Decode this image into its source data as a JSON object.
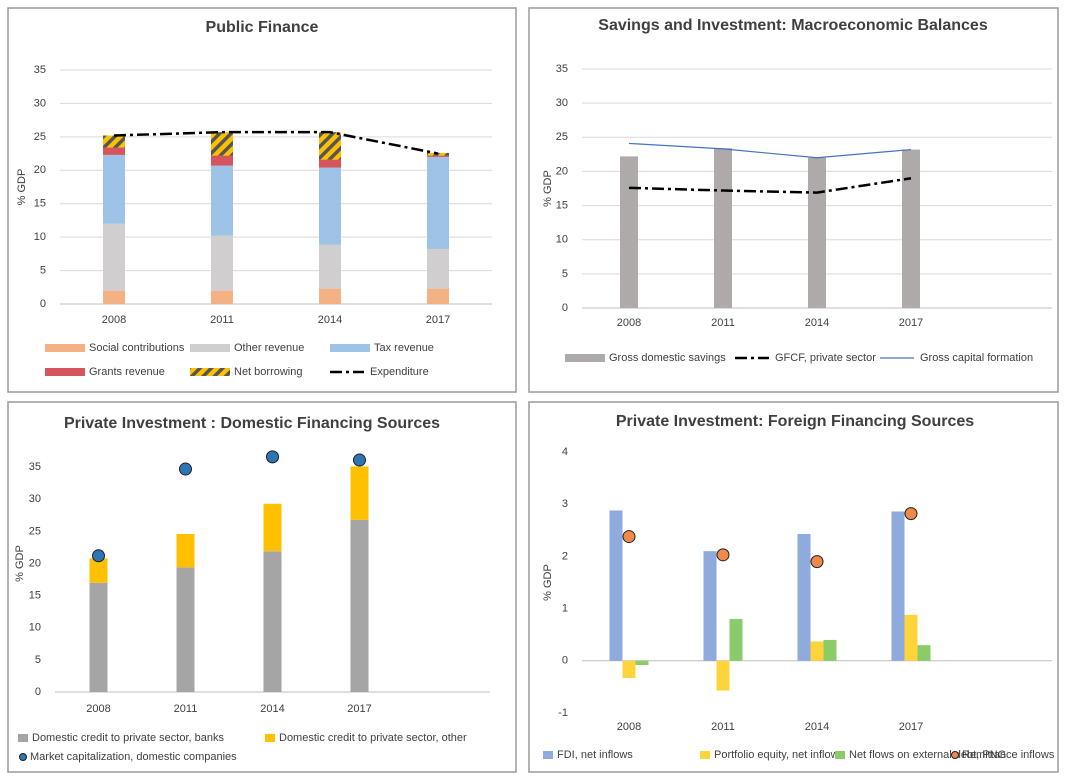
{
  "chart_data": [
    {
      "type": "bar",
      "title": "Public Finance",
      "y_label": "% GDP",
      "stacked": true,
      "grid": true,
      "legend": "bottom",
      "categories": [
        "2008",
        "2011",
        "2014",
        "2017"
      ],
      "ylim": [
        0,
        35
      ],
      "yticks": [
        0,
        5,
        10,
        15,
        20,
        25,
        30,
        35
      ],
      "series": [
        {
          "name": "Social contributions",
          "kind": "bar",
          "color": "#f4b183",
          "values": [
            2,
            2,
            2.3,
            2.3
          ]
        },
        {
          "name": "Other revenue",
          "kind": "bar",
          "color": "#d0cece",
          "values": [
            10,
            8.2,
            6.6,
            5.9
          ]
        },
        {
          "name": "Tax revenue",
          "kind": "bar",
          "color": "#9dc3e6",
          "values": [
            10.3,
            10.5,
            11.5,
            13.8
          ]
        },
        {
          "name": "Grants revenue",
          "kind": "bar",
          "color": "#d6545c",
          "values": [
            1.1,
            1.5,
            1.2,
            0.2
          ]
        },
        {
          "name": "Net borrowing",
          "kind": "bar",
          "color": "#ffc000",
          "pattern": "hatch",
          "values": [
            1.8,
            3.5,
            4.1,
            0.4
          ]
        },
        {
          "name": "Expenditure",
          "kind": "line",
          "color": "#000000",
          "dash": "dashdot",
          "values": [
            25.2,
            25.7,
            25.7,
            22.5
          ]
        }
      ]
    },
    {
      "type": "bar",
      "title": "Savings and Investment: Macroeconomic Balances",
      "y_label": "% GDP",
      "stacked": false,
      "grid": true,
      "legend": "bottom",
      "categories": [
        "2008",
        "2011",
        "2014",
        "2017"
      ],
      "ylim": [
        0,
        35
      ],
      "yticks": [
        0,
        5,
        10,
        15,
        20,
        25,
        30,
        35
      ],
      "series": [
        {
          "name": "Gross domestic savings",
          "kind": "bar",
          "color": "#aeaaaa",
          "values": [
            22.2,
            23.4,
            22.0,
            23.2
          ]
        },
        {
          "name": "GFCF, private sector",
          "kind": "line",
          "color": "#000000",
          "dash": "dashdot",
          "values": [
            17.6,
            17.2,
            16.9,
            19.0
          ]
        },
        {
          "name": "Gross capital formation",
          "kind": "line",
          "color": "#4472c4",
          "values": [
            24.1,
            23.3,
            22.0,
            23.2
          ]
        }
      ]
    },
    {
      "type": "bar",
      "title": "Private Investment : Domestic Financing Sources",
      "y_label": "% GDP",
      "stacked": true,
      "grid": false,
      "legend": "bottom",
      "categories": [
        "2008",
        "2011",
        "2014",
        "2017"
      ],
      "ylim": [
        0,
        40
      ],
      "yticks": [
        0,
        5,
        10,
        15,
        20,
        25,
        30,
        35
      ],
      "series": [
        {
          "name": "Domestic credit to private sector, banks",
          "kind": "bar",
          "color": "#a5a5a5",
          "values": [
            17,
            19.4,
            21.9,
            26.8
          ]
        },
        {
          "name": "Domestic credit to private sector, other",
          "kind": "bar",
          "color": "#ffc000",
          "values": [
            3.8,
            5.2,
            7.4,
            8.3
          ]
        },
        {
          "name": "Market capitalization, domestic companies",
          "kind": "scatter",
          "color": "#2e75b6",
          "values": [
            21.2,
            34.7,
            36.6,
            36.1
          ]
        }
      ]
    },
    {
      "type": "bar",
      "title": "Private Investment: Foreign Financing Sources",
      "y_label": "% GDP",
      "stacked": false,
      "grid": false,
      "legend": "bottom",
      "categories": [
        "2008",
        "2011",
        "2014",
        "2017"
      ],
      "ylim": [
        -1,
        4
      ],
      "yticks": [
        -1,
        0,
        1,
        2,
        3,
        4
      ],
      "series": [
        {
          "name": "FDI, net inflows",
          "kind": "bar",
          "color": "#8faadc",
          "values": [
            2.88,
            2.1,
            2.43,
            2.86
          ]
        },
        {
          "name": "Portfolio equity, net inflows",
          "kind": "bar",
          "color": "#ffd43b",
          "values": [
            -0.33,
            -0.57,
            0.37,
            0.88
          ]
        },
        {
          "name": "Net flows on external debt, PNG",
          "kind": "bar",
          "color": "#8ccb6a",
          "values": [
            -0.08,
            0.8,
            0.4,
            0.3
          ]
        },
        {
          "name": "Remittance inflows",
          "kind": "scatter",
          "color": "#f08a4b",
          "values": [
            2.38,
            2.03,
            1.9,
            2.82
          ]
        }
      ]
    }
  ]
}
